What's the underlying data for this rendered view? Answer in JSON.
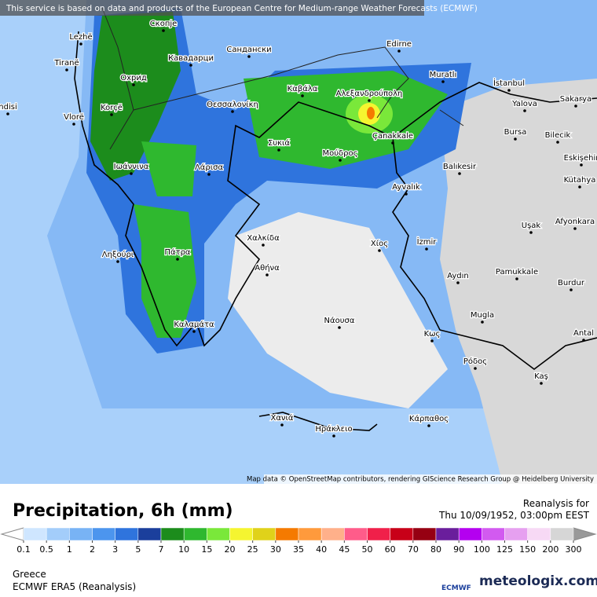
{
  "header": {
    "notice": "This service is based on data and products of the European Centre for Medium-range Weather Forecasts (ECMWF)"
  },
  "map": {
    "cities": [
      "Lezhë",
      "Скопје",
      "Tiranë",
      "Кавадарци",
      "Сандански",
      "Edirne",
      "Охрид",
      "Muratlı",
      "İstanbul",
      "Korçë",
      "Θεσσαλονίκη",
      "Καβάλα",
      "Αλεξανδρούπολη",
      "Yalova",
      "Sakarya",
      "Vlorë",
      "ndisi",
      "Bursa",
      "Bilecik",
      "Συκιά",
      "Çanakkale",
      "Eskişehir",
      "Ιωάννινα",
      "Λάρισα",
      "Μούδρος",
      "Balıkesir",
      "Kütahya",
      "Ayvalık",
      "Uşak",
      "Afyonkara",
      "Χαλκίδα",
      "Χίος",
      "İzmir",
      "Ληξούρι",
      "Πάτρα",
      "Αθήνα",
      "Aydın",
      "Pamukkale",
      "Burdur",
      "Νάουσα",
      "Mugla",
      "Καλαμάτα",
      "Κως",
      "Antal",
      "Ρόδος",
      "Kaş",
      "Χανιά",
      "Ηράκλειο",
      "Κάρπαθος"
    ],
    "attribution": "Map data © OpenStreetMap contributors, rendering GIScience Research Group @ Heidelberg University"
  },
  "footer": {
    "title": "Precipitation, 6h (mm)",
    "reanalysis_label": "Reanalysis for",
    "datetime": "Thu 10/09/1952, 03:00pm EEST",
    "region": "Greece",
    "source": "ECMWF ERA5 (Reanalysis)",
    "ecmwf_logo": "ECMWF",
    "brand": "meteologix.com"
  },
  "legend": {
    "ticks": [
      0.1,
      0.5,
      1,
      2,
      3,
      5,
      7,
      10,
      15,
      20,
      25,
      30,
      35,
      40,
      45,
      50,
      60,
      70,
      80,
      90,
      100,
      125,
      150,
      200,
      300
    ],
    "colors": [
      "#cfe6ff",
      "#a3cdfa",
      "#78b3f5",
      "#4c95ee",
      "#2f74dd",
      "#1b3f9c",
      "#1c8c1c",
      "#2fb82f",
      "#7ae83a",
      "#f5f530",
      "#e0d21a",
      "#f57a00",
      "#ff9a3c",
      "#ffb08a",
      "#ff5c8a",
      "#f0204a",
      "#c80018",
      "#960012",
      "#6a1e9c",
      "#b400f0",
      "#d25af0",
      "#e6a0f0",
      "#f7d9f5",
      "#d6d6d6"
    ],
    "under_color": "#ffffff",
    "over_color": "#999999"
  }
}
